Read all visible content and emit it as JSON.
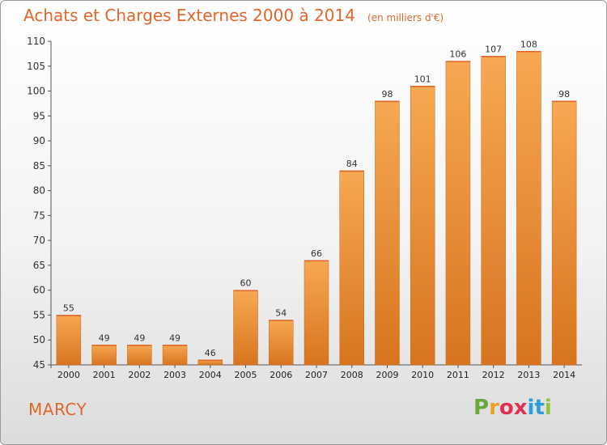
{
  "title": {
    "main": "Achats et Charges Externes 2000 à 2014",
    "unit": "(en milliers d'€)"
  },
  "commune": "MARCY",
  "logo": {
    "letters": [
      "P",
      "r",
      "o",
      "x",
      "i",
      "t",
      "i"
    ],
    "colors": [
      "#6aa83f",
      "#f0a020",
      "#e03050",
      "#e03050",
      "#2b9fd8",
      "#2b9fd8",
      "#8ec63f"
    ]
  },
  "colors": {
    "accent": "#e0662a",
    "bar_light": "#f7a852",
    "bar_dark": "#d8741f"
  },
  "chart_data": {
    "type": "bar",
    "title": "Achats et Charges Externes 2000 à 2014",
    "categories": [
      "2000",
      "2001",
      "2002",
      "2003",
      "2004",
      "2005",
      "2006",
      "2007",
      "2008",
      "2009",
      "2010",
      "2011",
      "2012",
      "2013",
      "2014"
    ],
    "values": [
      55,
      49,
      49,
      49,
      46,
      60,
      54,
      66,
      84,
      98,
      101,
      106,
      107,
      108,
      98
    ],
    "ylim": [
      45,
      110
    ],
    "yticks": [
      45,
      50,
      55,
      60,
      65,
      70,
      75,
      80,
      85,
      90,
      95,
      100,
      105,
      110
    ],
    "grid": false,
    "legend": "none"
  }
}
